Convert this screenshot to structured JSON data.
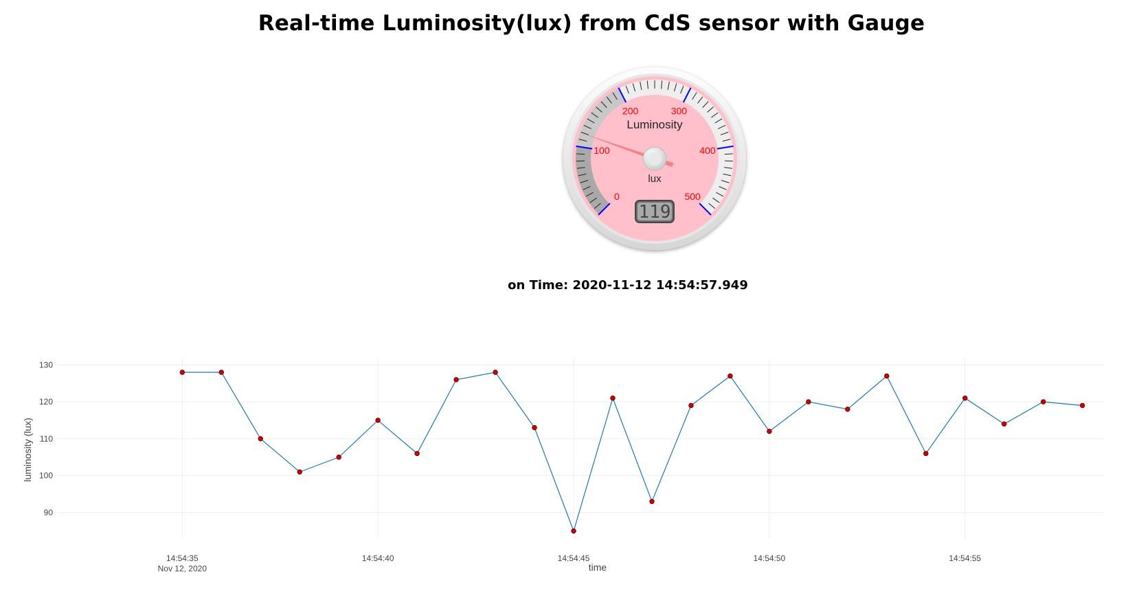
{
  "title": "Real-time Luminosity(lux) from CdS sensor with Gauge",
  "gauge": {
    "title": "Luminosity",
    "units": "lux",
    "value": 119,
    "display_value": "119",
    "min": 0,
    "max": 500,
    "major_ticks": [
      "0",
      "100",
      "200",
      "300",
      "400",
      "500"
    ],
    "colors": {
      "plate": "#ffc0cb",
      "major_tick": "#0000ff",
      "numbers": "#ff0000",
      "needle": "#f08080",
      "highlight_dark": "#a9a9a9",
      "highlight_mid": "#c8c8c8",
      "highlight_light": "#eeeeee",
      "value_box": "#6e6e6e"
    }
  },
  "timestamp_label": "on Time:",
  "timestamp_value": "2020-11-12 14:54:57.949",
  "chart_data": {
    "type": "line",
    "title": "",
    "xlabel": "time",
    "ylabel": "luminosity (lux)",
    "x": [
      "14:54:35",
      "14:54:36",
      "14:54:37",
      "14:54:38",
      "14:54:39",
      "14:54:40",
      "14:54:41",
      "14:54:42",
      "14:54:43",
      "14:54:44",
      "14:54:45",
      "14:54:46",
      "14:54:47",
      "14:54:48",
      "14:54:49",
      "14:54:50",
      "14:54:51",
      "14:54:52",
      "14:54:53",
      "14:54:54",
      "14:54:55",
      "14:54:56",
      "14:54:57",
      "14:54:58"
    ],
    "values": [
      128,
      128,
      110,
      101,
      105,
      115,
      106,
      126,
      128,
      113,
      85,
      121,
      93,
      119,
      127,
      112,
      120,
      118,
      127,
      106,
      121,
      114,
      120,
      119
    ],
    "xtick_labels": [
      "14:54:35",
      "14:54:40",
      "14:54:45",
      "14:54:50",
      "14:54:55"
    ],
    "xtick_sublabel": "Nov 12, 2020",
    "yticks": [
      90,
      100,
      110,
      120,
      130
    ],
    "ylim": [
      83,
      131
    ],
    "grid": true,
    "line_color": "#1f77b4",
    "marker_color": "#cc0000"
  }
}
